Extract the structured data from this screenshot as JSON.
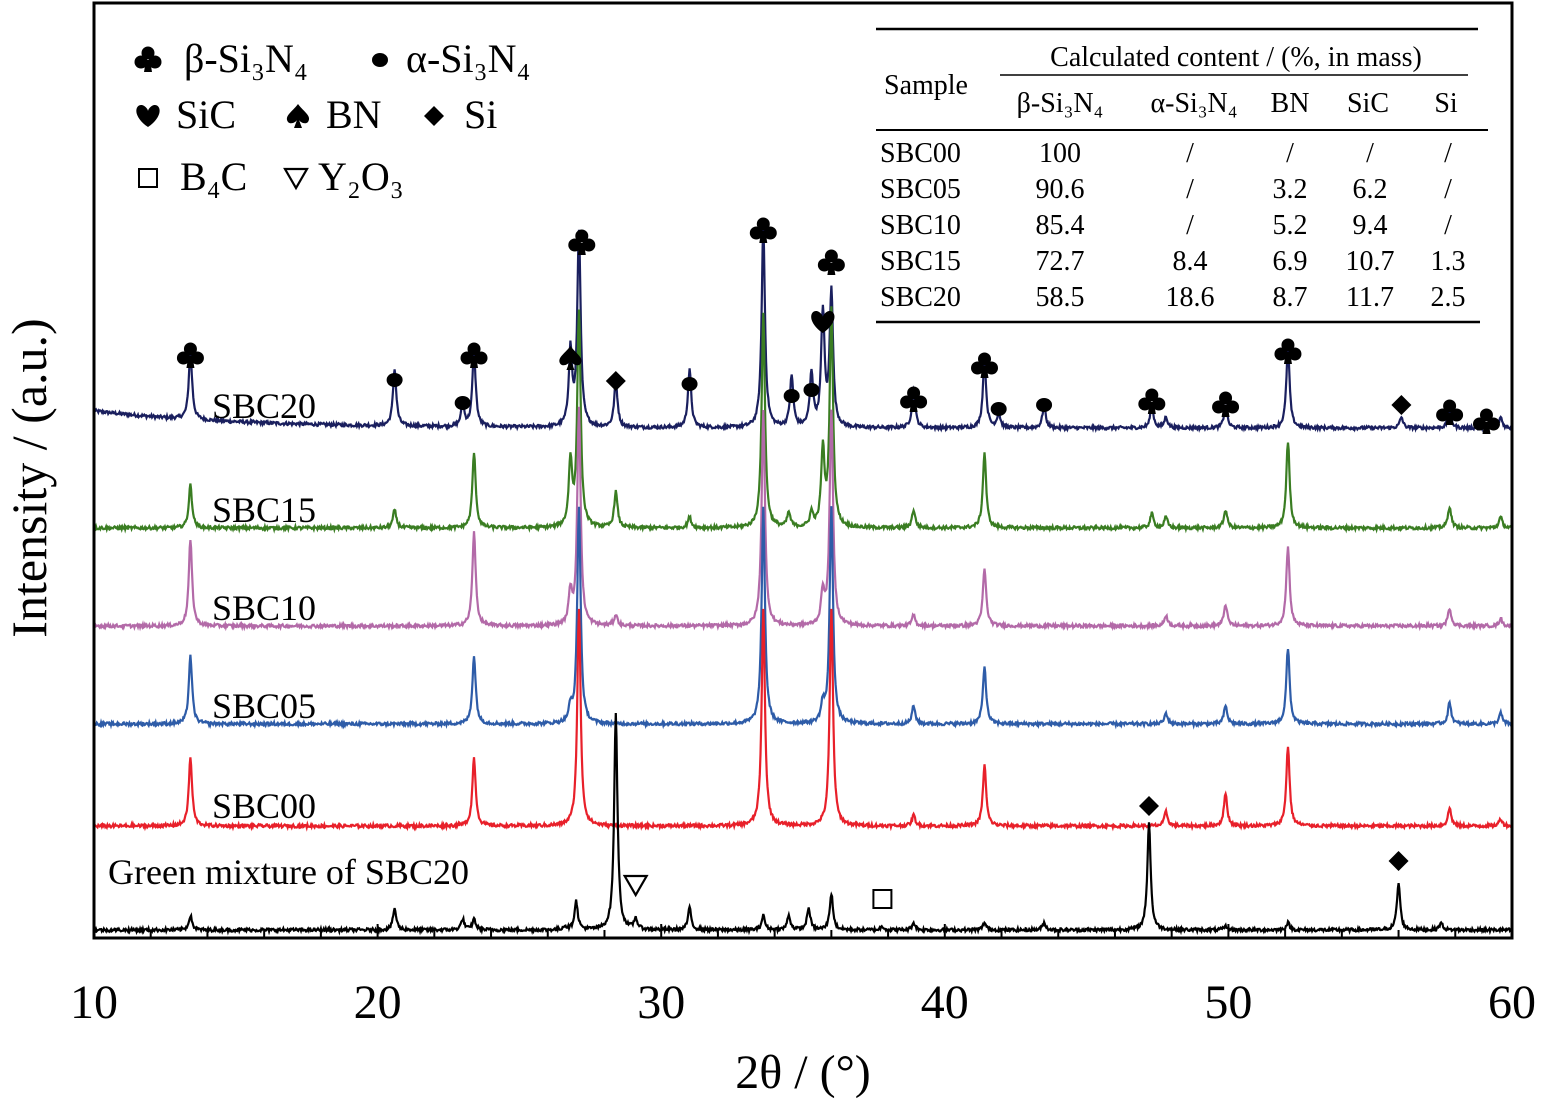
{
  "chart_data": {
    "type": "line",
    "title": "",
    "xlabel": "2θ / (°)",
    "ylabel": "Intensity / (a.u.)",
    "xlim": [
      10,
      60
    ],
    "xticks": [
      "10",
      "20",
      "30",
      "40",
      "50",
      "60"
    ],
    "legend_items": [
      {
        "symbol": "club",
        "label": "β-Si₃N₄"
      },
      {
        "symbol": "dot",
        "label": "α-Si₃N₄"
      },
      {
        "symbol": "heart",
        "label": "SiC"
      },
      {
        "symbol": "spade",
        "label": "BN"
      },
      {
        "symbol": "diamond",
        "label": "Si"
      },
      {
        "symbol": "square",
        "label": "B₄C"
      },
      {
        "symbol": "triangle",
        "label": "Y₂O₃"
      }
    ],
    "series": [
      {
        "name": "SBC20",
        "color": "#1a1f5e",
        "baseline": 0.95,
        "peaks": [
          [
            13.4,
            1.9
          ],
          [
            20.6,
            1.6
          ],
          [
            23.0,
            0.6
          ],
          [
            23.4,
            2.1
          ],
          [
            26.8,
            2.1
          ],
          [
            27.1,
            5.4
          ],
          [
            28.4,
            1.3
          ],
          [
            31.0,
            1.6
          ],
          [
            33.6,
            5.6
          ],
          [
            34.6,
            1.4
          ],
          [
            35.3,
            1.5
          ],
          [
            35.7,
            3.2
          ],
          [
            36.0,
            3.8
          ],
          [
            38.9,
            1.1
          ],
          [
            41.4,
            1.9
          ],
          [
            41.9,
            0.4
          ],
          [
            43.5,
            0.6
          ],
          [
            47.3,
            0.6
          ],
          [
            47.8,
            0.3
          ],
          [
            49.9,
            0.6
          ],
          [
            52.1,
            2.2
          ],
          [
            56.1,
            0.3
          ],
          [
            57.8,
            0.5
          ],
          [
            59.6,
            0.3
          ]
        ]
      },
      {
        "name": "SBC15",
        "color": "#3a7d22",
        "baseline": 0.0,
        "peaks": [
          [
            13.4,
            1.2
          ],
          [
            20.6,
            0.5
          ],
          [
            23.4,
            2.1
          ],
          [
            26.8,
            1.8
          ],
          [
            27.1,
            6.0
          ],
          [
            28.4,
            1.0
          ],
          [
            31.0,
            0.3
          ],
          [
            33.6,
            6.0
          ],
          [
            34.5,
            0.4
          ],
          [
            35.3,
            0.4
          ],
          [
            35.7,
            2.1
          ],
          [
            36.0,
            6.0
          ],
          [
            38.9,
            0.5
          ],
          [
            41.4,
            2.1
          ],
          [
            47.3,
            0.4
          ],
          [
            47.8,
            0.3
          ],
          [
            49.9,
            0.5
          ],
          [
            52.1,
            2.4
          ],
          [
            57.8,
            0.6
          ],
          [
            59.6,
            0.3
          ]
        ]
      },
      {
        "name": "SBC10",
        "color": "#b36aa8",
        "baseline": 0.0,
        "peaks": [
          [
            13.4,
            2.4
          ],
          [
            23.4,
            2.6
          ],
          [
            26.8,
            0.9
          ],
          [
            27.1,
            6.0
          ],
          [
            28.4,
            0.3
          ],
          [
            33.6,
            6.0
          ],
          [
            35.7,
            0.9
          ],
          [
            36.0,
            6.0
          ],
          [
            38.9,
            0.3
          ],
          [
            41.4,
            1.6
          ],
          [
            47.8,
            0.3
          ],
          [
            49.9,
            0.6
          ],
          [
            52.1,
            2.2
          ],
          [
            57.8,
            0.5
          ],
          [
            59.6,
            0.2
          ]
        ]
      },
      {
        "name": "SBC05",
        "color": "#2e5ca8",
        "baseline": 0.0,
        "peaks": [
          [
            13.4,
            1.9
          ],
          [
            23.4,
            1.9
          ],
          [
            26.8,
            0.4
          ],
          [
            27.1,
            6.0
          ],
          [
            33.6,
            6.0
          ],
          [
            35.7,
            0.5
          ],
          [
            36.0,
            6.0
          ],
          [
            38.9,
            0.5
          ],
          [
            41.4,
            1.6
          ],
          [
            47.8,
            0.3
          ],
          [
            49.9,
            0.5
          ],
          [
            52.1,
            2.1
          ],
          [
            57.8,
            0.6
          ],
          [
            59.6,
            0.3
          ]
        ]
      },
      {
        "name": "SBC00",
        "color": "#e8202a",
        "baseline": 0.0,
        "peaks": [
          [
            13.4,
            1.9
          ],
          [
            23.4,
            1.9
          ],
          [
            27.1,
            6.0
          ],
          [
            33.6,
            6.0
          ],
          [
            36.0,
            6.0
          ],
          [
            38.9,
            0.3
          ],
          [
            41.4,
            1.7
          ],
          [
            47.8,
            0.4
          ],
          [
            49.9,
            0.9
          ],
          [
            52.1,
            2.2
          ],
          [
            57.8,
            0.5
          ],
          [
            59.6,
            0.2
          ]
        ]
      },
      {
        "name": "Green mixture of SBC20",
        "color": "#000000",
        "baseline": 0.0,
        "peaks": [
          [
            13.4,
            0.4
          ],
          [
            20.6,
            0.6
          ],
          [
            23.0,
            0.3
          ],
          [
            23.4,
            0.3
          ],
          [
            26.6,
            0.1
          ],
          [
            27.0,
            0.8
          ],
          [
            28.4,
            6.0
          ],
          [
            29.1,
            0.3
          ],
          [
            31.0,
            0.6
          ],
          [
            33.6,
            0.4
          ],
          [
            34.5,
            0.4
          ],
          [
            35.2,
            0.6
          ],
          [
            36.0,
            1.0
          ],
          [
            37.8,
            0.1
          ],
          [
            38.9,
            0.2
          ],
          [
            41.4,
            0.2
          ],
          [
            43.5,
            0.2
          ],
          [
            47.2,
            3.0
          ],
          [
            49.9,
            0.1
          ],
          [
            52.1,
            0.2
          ],
          [
            56.0,
            1.3
          ],
          [
            57.5,
            0.2
          ]
        ]
      }
    ],
    "annotations": [
      {
        "symbol": "club",
        "x": 13.4
      },
      {
        "symbol": "dot",
        "x": 20.6
      },
      {
        "symbol": "dot",
        "x": 23.0
      },
      {
        "symbol": "club",
        "x": 23.4
      },
      {
        "symbol": "spade",
        "x": 26.8
      },
      {
        "symbol": "club",
        "x": 27.2
      },
      {
        "symbol": "diamond",
        "x": 28.4
      },
      {
        "symbol": "dot",
        "x": 31.0
      },
      {
        "symbol": "club",
        "x": 33.6
      },
      {
        "symbol": "dot",
        "x": 34.6
      },
      {
        "symbol": "dot",
        "x": 35.3
      },
      {
        "symbol": "heart",
        "x": 35.7
      },
      {
        "symbol": "club",
        "x": 36.0
      },
      {
        "symbol": "club",
        "x": 38.9
      },
      {
        "symbol": "club",
        "x": 41.4
      },
      {
        "symbol": "dot",
        "x": 41.9
      },
      {
        "symbol": "dot",
        "x": 43.5
      },
      {
        "symbol": "club",
        "x": 47.3
      },
      {
        "symbol": "club",
        "x": 49.9
      },
      {
        "symbol": "club",
        "x": 52.1
      },
      {
        "symbol": "diamond",
        "x": 56.1
      },
      {
        "symbol": "club",
        "x": 57.8
      },
      {
        "symbol": "club",
        "x": 59.1
      },
      {
        "symbol": "diamond",
        "x": 47.2
      },
      {
        "symbol": "diamond",
        "x": 56.0
      },
      {
        "symbol": "triangle",
        "x": 29.1
      },
      {
        "symbol": "square",
        "x": 37.8
      }
    ]
  },
  "table": {
    "header_sample": "Sample",
    "header_group": "Calculated content / (%, in mass)",
    "columns": [
      "β-Si₃N₄",
      "α-Si₃N₄",
      "BN",
      "SiC",
      "Si"
    ],
    "rows": [
      [
        "SBC00",
        "100",
        "/",
        "/",
        "/",
        "/"
      ],
      [
        "SBC05",
        "90.6",
        "/",
        "3.2",
        "6.2",
        "/"
      ],
      [
        "SBC10",
        "85.4",
        "/",
        "5.2",
        "9.4",
        "/"
      ],
      [
        "SBC15",
        "72.7",
        "8.4",
        "6.9",
        "10.7",
        "1.3"
      ],
      [
        "SBC20",
        "58.5",
        "18.6",
        "8.7",
        "11.7",
        "2.5"
      ]
    ]
  }
}
